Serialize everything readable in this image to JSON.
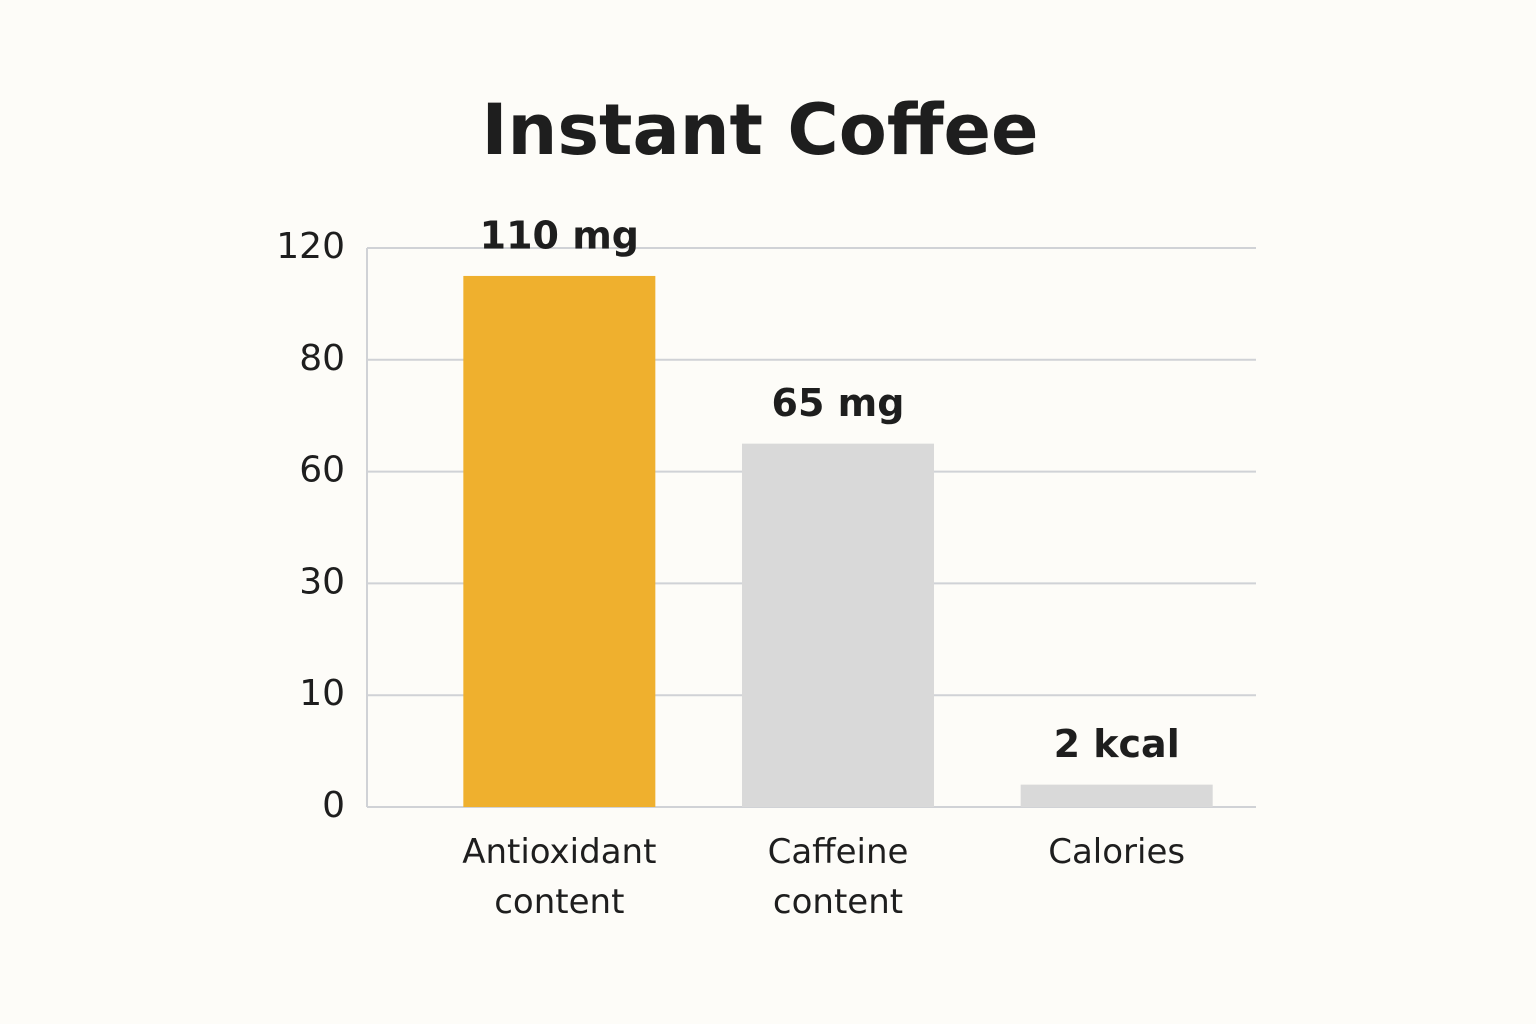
{
  "chart_data": {
    "type": "bar",
    "title": "Instant Coffee",
    "categories": [
      "Antioxidant content",
      "Caffeine content",
      "Calories"
    ],
    "values": [
      110,
      65,
      2
    ],
    "value_labels": [
      "110 mg",
      "65 mg",
      "2 kcal"
    ],
    "colors": [
      "#efb02e",
      "#d9d9d9",
      "#d9d9d9"
    ],
    "ylim": [
      0,
      120
    ],
    "yticks": [
      0,
      10,
      30,
      60,
      80,
      120
    ],
    "grid": true
  }
}
